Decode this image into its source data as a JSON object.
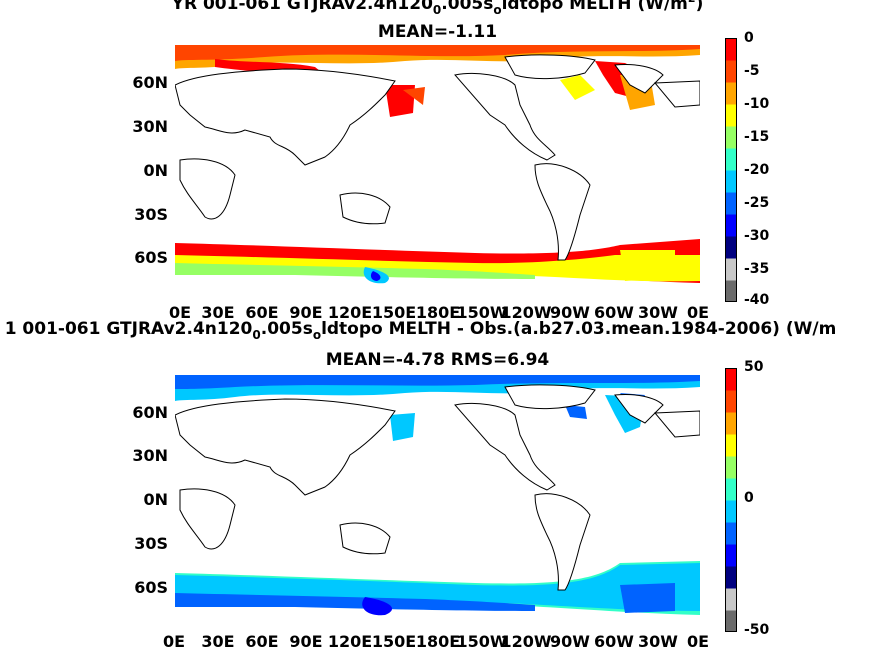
{
  "panels": [
    {
      "title_parts": [
        "YR 001-061 GTJRAv2.4n120",
        "0",
        ".005s",
        "o",
        "ldtopo  MELTH (W/m",
        "2",
        ")"
      ],
      "subtitle": "MEAN=-1.11",
      "colorbar": {
        "min": -40,
        "max": 0,
        "ticks": [
          "0",
          "-5",
          "-10",
          "-15",
          "-20",
          "-25",
          "-30",
          "-35",
          "-40"
        ]
      }
    },
    {
      "title_parts": [
        "1 001-061 GTJRAv2.4n120",
        "0",
        ".005s",
        "o",
        "ldtopo MELTH - Obs.(a.b27.03.mean.1984-2006) (W/m",
        "",
        ""
      ],
      "subtitle": "MEAN=-4.78 RMS=6.94",
      "colorbar": {
        "min": -50,
        "max": 50,
        "ticks": [
          "50",
          "0",
          "-50"
        ]
      }
    }
  ],
  "axes": {
    "lat_labels": [
      "60N",
      "30N",
      "0N",
      "30S",
      "60S"
    ],
    "lon_labels": [
      "0E",
      "30E",
      "60E",
      "90E",
      "120E",
      "150E",
      "180E",
      "150W",
      "120W",
      "90W",
      "60W",
      "30W",
      "0E"
    ]
  },
  "colors": {
    "ocean_background": "#ffffff",
    "coastline": "#000000",
    "rainbow": [
      "#6b6b6b",
      "#c8c8c8",
      "#00007f",
      "#0000ff",
      "#0063ff",
      "#00c8ff",
      "#32ffc8",
      "#96ff64",
      "#ffff00",
      "#ffa500",
      "#ff4500",
      "#ff0000"
    ]
  }
}
